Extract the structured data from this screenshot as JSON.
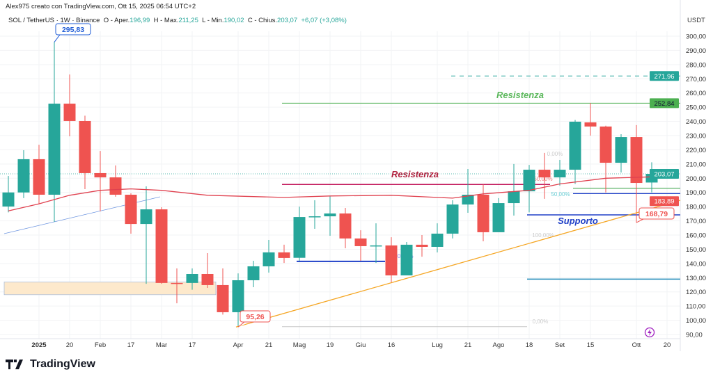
{
  "credit": "Alex975 creato con TradingView.com, Ott 15, 2025 06:54 UTC+2",
  "legend": {
    "symbol": "SOL / TetherUS · 1W · Binance",
    "open_label": "O - Aper.",
    "open": "196,99",
    "high_label": "H - Max.",
    "high": "211,25",
    "low_label": "L - Min.",
    "low": "190,02",
    "close_label": "C - Chius.",
    "close": "203,07",
    "change": "+6,07 (+3,08%)"
  },
  "logo": "TradingView",
  "colors": {
    "up": "#26a69a",
    "down": "#ef5350",
    "ma": "#e0414f",
    "trend": "#f5a623",
    "support": "#1e3fc7",
    "resistance_green": "#4caf50",
    "resistance_red": "#c2185b"
  },
  "chart_data": {
    "type": "candlestick",
    "timeframe": "1W",
    "currency": "USDT",
    "ylim": [
      85,
      305
    ],
    "y_ticks": [
      "300,00",
      "290,00",
      "280,00",
      "270,00",
      "260,00",
      "250,00",
      "240,00",
      "230,00",
      "220,00",
      "210,00",
      "200,00",
      "190,00",
      "180,00",
      "170,00",
      "160,00",
      "150,00",
      "140,00",
      "130,00",
      "120,00",
      "110,00",
      "100,00",
      "90,00"
    ],
    "x_ticks": [
      {
        "label": "2025",
        "week": 2,
        "bold": true
      },
      {
        "label": "20",
        "week": 4
      },
      {
        "label": "Feb",
        "week": 6
      },
      {
        "label": "17",
        "week": 8
      },
      {
        "label": "Mar",
        "week": 10
      },
      {
        "label": "17",
        "week": 12
      },
      {
        "label": "Apr",
        "week": 15
      },
      {
        "label": "21",
        "week": 17
      },
      {
        "label": "Mag",
        "week": 19
      },
      {
        "label": "19",
        "week": 21
      },
      {
        "label": "Giu",
        "week": 23
      },
      {
        "label": "16",
        "week": 25
      },
      {
        "label": "Lug",
        "week": 28
      },
      {
        "label": "21",
        "week": 30
      },
      {
        "label": "Ago",
        "week": 32
      },
      {
        "label": "18",
        "week": 34
      },
      {
        "label": "Set",
        "week": 36
      },
      {
        "label": "15",
        "week": 38
      },
      {
        "label": "Ott",
        "week": 41
      },
      {
        "label": "20",
        "week": 43
      }
    ],
    "candles_ohlc": [
      [
        180.1,
        201.6,
        176,
        190
      ],
      [
        190,
        219.7,
        186,
        213.4
      ],
      [
        213.4,
        223.6,
        182,
        188.4
      ],
      [
        188.4,
        295.83,
        169.3,
        252.5
      ],
      [
        252.5,
        273,
        229.5,
        240.3
      ],
      [
        240.3,
        244,
        192.3,
        203.6
      ],
      [
        203.6,
        219.2,
        176.7,
        200.6
      ],
      [
        200.6,
        209,
        187,
        188.4
      ],
      [
        188.4,
        189.4,
        161,
        167.8
      ],
      [
        167.8,
        194.3,
        125.7,
        178.1
      ],
      [
        178.1,
        179.6,
        125.7,
        126.3
      ],
      [
        126.3,
        136.5,
        112,
        125.8
      ],
      [
        126.3,
        136.5,
        121.5,
        132.6
      ],
      [
        132.6,
        147.3,
        122.8,
        124.8
      ],
      [
        124.8,
        136.5,
        104,
        105.7
      ],
      [
        105.7,
        133,
        95.26,
        128.2
      ],
      [
        128.2,
        141.9,
        123.3,
        138
      ],
      [
        138,
        156.6,
        133.6,
        147.8
      ],
      [
        147.8,
        153.2,
        140.4,
        143.9
      ],
      [
        144,
        180,
        141.9,
        172.7
      ],
      [
        172.7,
        184.5,
        164.4,
        173.2
      ],
      [
        173.2,
        187.4,
        159.5,
        175.2
      ],
      [
        175.2,
        179.1,
        150.7,
        157.6
      ],
      [
        157.6,
        163.4,
        141.9,
        152.2
      ],
      [
        152.2,
        168.3,
        140.4,
        152.7
      ],
      [
        152.7,
        158.5,
        126.3,
        131.6
      ],
      [
        131.6,
        155.1,
        131.6,
        153.2
      ],
      [
        153.2,
        160,
        144.8,
        151.7
      ],
      [
        151.7,
        168.3,
        147.8,
        161
      ],
      [
        161,
        184.5,
        157.6,
        181.5
      ],
      [
        181.5,
        206.5,
        175.7,
        188.4
      ],
      [
        188.4,
        195.7,
        155.6,
        162
      ],
      [
        162,
        186,
        162,
        182.5
      ],
      [
        182.5,
        210,
        173.7,
        190.8
      ],
      [
        190.8,
        209.4,
        176,
        206
      ],
      [
        206,
        217.8,
        185.5,
        200.6
      ],
      [
        200.6,
        212.9,
        194.8,
        206
      ],
      [
        206,
        241,
        196,
        239.8
      ],
      [
        239.3,
        253,
        230,
        236.4
      ],
      [
        236.4,
        237,
        190,
        210.9
      ],
      [
        210.9,
        231,
        204,
        229
      ],
      [
        229,
        237.4,
        168.79,
        196.7
      ],
      [
        196.99,
        211.25,
        190.02,
        203.07
      ]
    ],
    "moving_average": [
      [
        0,
        177
      ],
      [
        2,
        182
      ],
      [
        4,
        188
      ],
      [
        6,
        191.5
      ],
      [
        8,
        192.5
      ],
      [
        10,
        191.5
      ],
      [
        13,
        188
      ],
      [
        18,
        186.5
      ],
      [
        21,
        187.5
      ],
      [
        25,
        188
      ],
      [
        29,
        186
      ],
      [
        31,
        189
      ],
      [
        34,
        191.5
      ],
      [
        36,
        196
      ],
      [
        39,
        200
      ],
      [
        42,
        201
      ]
    ],
    "price_labels": [
      {
        "text": "271,96",
        "price": 271.96,
        "color": "#26a69a"
      },
      {
        "text": "252,84",
        "price": 252.84,
        "color": "#4caf50"
      },
      {
        "text": "203,07",
        "price": 203.07,
        "color": "#26a69a"
      },
      {
        "text": "183,89",
        "price": 183.89,
        "color": "#ef5350"
      }
    ],
    "callouts": [
      {
        "text": "295,83",
        "week": 3,
        "price": 295.83,
        "color": "#1e5bd6"
      },
      {
        "text": "95,26",
        "week": 15,
        "price": 95.26,
        "color": "#ef5350"
      },
      {
        "text": "168,79",
        "week": 41,
        "price": 168.79,
        "color": "#ef5350"
      }
    ],
    "annotations": {
      "resistance_upper": "Resistenza",
      "resistance_lower": "Resistenza",
      "support": "Supporto",
      "fib_labels": [
        "0,00%",
        "50,00%",
        "50,00%",
        "100,00%",
        "0,00%",
        "50,00%"
      ]
    }
  }
}
